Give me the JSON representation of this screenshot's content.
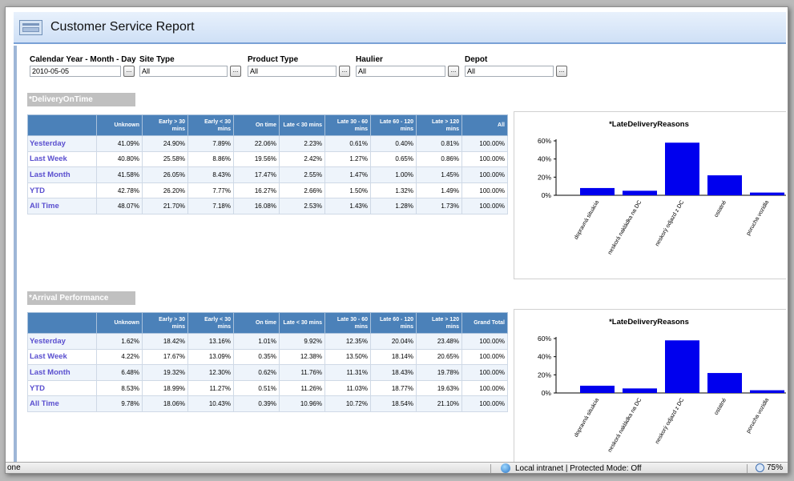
{
  "header": {
    "title": "Customer Service Report"
  },
  "filters": [
    {
      "label": "Calendar Year - Month - Day",
      "value": "2010-05-05",
      "button": "..."
    },
    {
      "label": "Site Type",
      "value": "All",
      "button": "..."
    },
    {
      "label": "Product Type",
      "value": "All",
      "button": "..."
    },
    {
      "label": "Haulier",
      "value": "All",
      "button": "..."
    },
    {
      "label": "Depot",
      "value": "All",
      "button": "..."
    }
  ],
  "sections": [
    {
      "title": "*DeliveryOnTime",
      "columns": [
        "",
        "Unknown",
        "Early > 30 mins",
        "Early < 30 mins",
        "On time",
        "Late < 30 mins",
        "Late 30 - 60 mins",
        "Late 60 - 120 mins",
        "Late > 120 mins",
        "All"
      ],
      "rows": [
        {
          "label": "Yesterday",
          "values": [
            "41.09%",
            "24.90%",
            "7.89%",
            "22.06%",
            "2.23%",
            "0.61%",
            "0.40%",
            "0.81%",
            "100.00%"
          ]
        },
        {
          "label": "Last Week",
          "values": [
            "40.80%",
            "25.58%",
            "8.86%",
            "19.56%",
            "2.42%",
            "1.27%",
            "0.65%",
            "0.86%",
            "100.00%"
          ]
        },
        {
          "label": "Last Month",
          "values": [
            "41.58%",
            "26.05%",
            "8.43%",
            "17.47%",
            "2.55%",
            "1.47%",
            "1.00%",
            "1.45%",
            "100.00%"
          ]
        },
        {
          "label": "YTD",
          "values": [
            "42.78%",
            "26.20%",
            "7.77%",
            "16.27%",
            "2.66%",
            "1.50%",
            "1.32%",
            "1.49%",
            "100.00%"
          ]
        },
        {
          "label": "All Time",
          "values": [
            "48.07%",
            "21.70%",
            "7.18%",
            "16.08%",
            "2.53%",
            "1.43%",
            "1.28%",
            "1.73%",
            "100.00%"
          ]
        }
      ]
    },
    {
      "title": "*Arrival Performance",
      "columns": [
        "",
        "Unknown",
        "Early > 30 mins",
        "Early < 30 mins",
        "On time",
        "Late < 30 mins",
        "Late 30 - 60 mins",
        "Late 60 - 120 mins",
        "Late > 120 mins",
        "Grand Total"
      ],
      "rows": [
        {
          "label": "Yesterday",
          "values": [
            "1.62%",
            "18.42%",
            "13.16%",
            "1.01%",
            "9.92%",
            "12.35%",
            "20.04%",
            "23.48%",
            "100.00%"
          ]
        },
        {
          "label": "Last Week",
          "values": [
            "4.22%",
            "17.67%",
            "13.09%",
            "0.35%",
            "12.38%",
            "13.50%",
            "18.14%",
            "20.65%",
            "100.00%"
          ]
        },
        {
          "label": "Last Month",
          "values": [
            "6.48%",
            "19.32%",
            "12.30%",
            "0.62%",
            "11.76%",
            "11.31%",
            "18.43%",
            "19.78%",
            "100.00%"
          ]
        },
        {
          "label": "YTD",
          "values": [
            "8.53%",
            "18.99%",
            "11.27%",
            "0.51%",
            "11.26%",
            "11.03%",
            "18.77%",
            "19.63%",
            "100.00%"
          ]
        },
        {
          "label": "All Time",
          "values": [
            "9.78%",
            "18.06%",
            "10.43%",
            "0.39%",
            "10.96%",
            "10.72%",
            "18.54%",
            "21.10%",
            "100.00%"
          ]
        }
      ]
    }
  ],
  "chart_data": [
    {
      "type": "bar",
      "title": "*LateDeliveryReasons",
      "categories": [
        "dopravná situácia",
        "neskorá nakládka na DC",
        "neskorý odjazd z DC",
        "ostatné",
        "porucha vozidla"
      ],
      "values": [
        8,
        5,
        58,
        22,
        3
      ],
      "ylim": [
        0,
        60
      ],
      "yticks": [
        "0%",
        "20%",
        "40%",
        "60%"
      ],
      "color": "#0000ee",
      "grid": false
    },
    {
      "type": "bar",
      "title": "*LateDeliveryReasons",
      "categories": [
        "dopravná situácia",
        "neskorá nakládka na DC",
        "neskorý odjazd z DC",
        "ostatné",
        "porucha vozidla"
      ],
      "values": [
        8,
        5,
        58,
        22,
        3
      ],
      "ylim": [
        0,
        60
      ],
      "yticks": [
        "0%",
        "20%",
        "40%",
        "60%"
      ],
      "color": "#0000ee",
      "grid": false
    }
  ],
  "statusbar": {
    "left": "one",
    "zone": "Local intranet | Protected Mode: Off",
    "zoom": "75%"
  }
}
